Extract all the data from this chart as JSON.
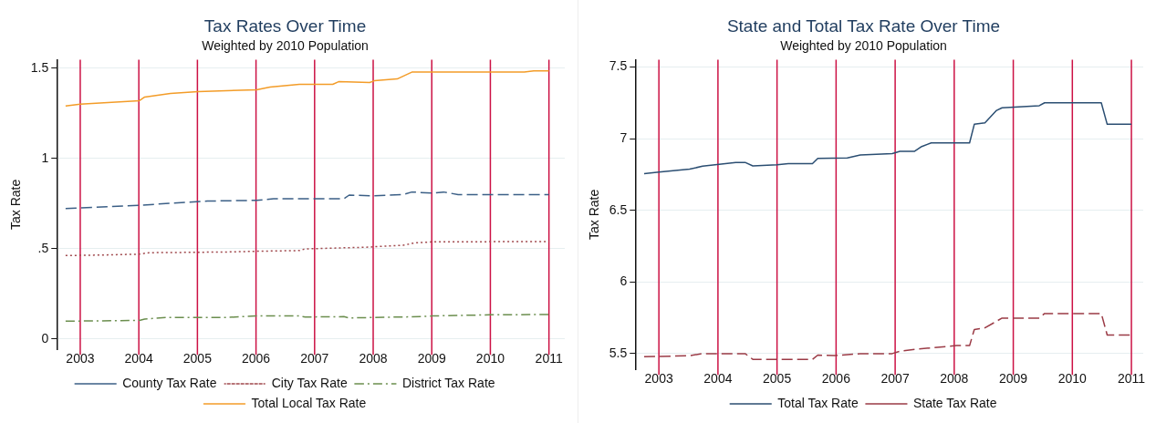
{
  "chart_data": [
    {
      "type": "line",
      "title": "Tax Rates Over Time",
      "subtitle": "Weighted by 2010 Population",
      "ylabel": "Tax Rate",
      "xlim": [
        2002.6,
        2011.27
      ],
      "xticks": [
        2003,
        2004,
        2005,
        2006,
        2007,
        2008,
        2009,
        2010,
        2011
      ],
      "ylim": [
        -0.057,
        1.546
      ],
      "yticks": [
        0,
        {
          "value": 0.5,
          "label": ".5"
        },
        1,
        1.5
      ],
      "grid": "y",
      "legend": "bottom",
      "marker": "none",
      "ref_lines": [
        {
          "axis": "x",
          "value": 2003,
          "color": "#cc1144"
        },
        {
          "axis": "x",
          "value": 2004,
          "color": "#cc1144"
        },
        {
          "axis": "x",
          "value": 2005,
          "color": "#cc1144"
        },
        {
          "axis": "x",
          "value": 2006,
          "color": "#cc1144"
        },
        {
          "axis": "x",
          "value": 2007,
          "color": "#cc1144"
        },
        {
          "axis": "x",
          "value": 2008,
          "color": "#cc1144"
        },
        {
          "axis": "x",
          "value": 2009,
          "color": "#cc1144"
        },
        {
          "axis": "x",
          "value": 2010,
          "color": "#cc1144"
        },
        {
          "axis": "x",
          "value": 2011,
          "color": "#cc1144"
        }
      ],
      "series": [
        {
          "name": "County Tax Rate",
          "color": "#3b5f86",
          "line_style": "dashed",
          "x": [
            2002.75,
            2004.01,
            2004.54,
            2005.17,
            2006.01,
            2006.3,
            2007.5,
            2007.59,
            2008.02,
            2008.51,
            2008.66,
            2009.01,
            2009.2,
            2009.45,
            2011
          ],
          "values": [
            0.723,
            0.74,
            0.752,
            0.764,
            0.768,
            0.777,
            0.777,
            0.797,
            0.793,
            0.8,
            0.814,
            0.808,
            0.814,
            0.8,
            0.8
          ]
        },
        {
          "name": "City Tax Rate",
          "color": "#a0484c",
          "line_style": "dotted",
          "x": [
            2002.75,
            2003.5,
            2004.01,
            2004.17,
            2005.52,
            2006.01,
            2006.74,
            2006.84,
            2007.5,
            2007.94,
            2008.02,
            2008.51,
            2008.7,
            2009.01,
            2011
          ],
          "values": [
            0.462,
            0.466,
            0.47,
            0.478,
            0.482,
            0.486,
            0.49,
            0.499,
            0.505,
            0.509,
            0.511,
            0.519,
            0.532,
            0.538,
            0.54
          ]
        },
        {
          "name": "District Tax Rate",
          "color": "#6b8e4e",
          "line_style": "dashdot",
          "x": [
            2002.75,
            2004.01,
            2004.1,
            2004.5,
            2005.52,
            2006.01,
            2006.74,
            2006.84,
            2007.5,
            2007.59,
            2008.82,
            2009.01,
            2010,
            2011
          ],
          "values": [
            0.099,
            0.103,
            0.111,
            0.12,
            0.12,
            0.128,
            0.128,
            0.122,
            0.124,
            0.117,
            0.124,
            0.128,
            0.134,
            0.136
          ]
        },
        {
          "name": "Total Local Tax Rate",
          "color": "#f39c28",
          "line_style": "solid",
          "x": [
            2002.75,
            2003.0,
            2004.01,
            2004.1,
            2004.54,
            2005.01,
            2006.01,
            2006.24,
            2006.74,
            2007.31,
            2007.41,
            2007.94,
            2008.02,
            2008.41,
            2008.66,
            2010.58,
            2010.74,
            2011
          ],
          "values": [
            1.29,
            1.3,
            1.32,
            1.34,
            1.36,
            1.37,
            1.38,
            1.395,
            1.41,
            1.41,
            1.425,
            1.42,
            1.43,
            1.44,
            1.478,
            1.478,
            1.485,
            1.485
          ]
        }
      ]
    },
    {
      "type": "line",
      "title": "State and Total Tax Rate Over Time",
      "subtitle": "Weighted by 2010 Population",
      "ylabel": "Tax Rate",
      "xlim": [
        2002.6,
        2011.2
      ],
      "xticks": [
        2003,
        2004,
        2005,
        2006,
        2007,
        2008,
        2009,
        2010,
        2011
      ],
      "ylim": [
        5.39,
        7.55
      ],
      "yticks": [
        5.5,
        6,
        6.5,
        7,
        7.5
      ],
      "grid": "y",
      "legend": "bottom",
      "marker": "none",
      "ref_lines": [
        {
          "axis": "x",
          "value": 2003,
          "color": "#cc1144"
        },
        {
          "axis": "x",
          "value": 2004,
          "color": "#cc1144"
        },
        {
          "axis": "x",
          "value": 2005,
          "color": "#cc1144"
        },
        {
          "axis": "x",
          "value": 2006,
          "color": "#cc1144"
        },
        {
          "axis": "x",
          "value": 2007,
          "color": "#cc1144"
        },
        {
          "axis": "x",
          "value": 2008,
          "color": "#cc1144"
        },
        {
          "axis": "x",
          "value": 2009,
          "color": "#cc1144"
        },
        {
          "axis": "x",
          "value": 2010,
          "color": "#cc1144"
        },
        {
          "axis": "x",
          "value": 2011,
          "color": "#cc1144"
        }
      ],
      "series": [
        {
          "name": "Total Tax Rate",
          "color": "#2b4e72",
          "line_style": "solid",
          "x": [
            2002.75,
            2003.0,
            2003.52,
            2003.74,
            2004.3,
            2004.46,
            2004.59,
            2005.0,
            2005.19,
            2005.6,
            2005.69,
            2006.19,
            2006.41,
            2006.95,
            2007.08,
            2007.33,
            2007.45,
            2007.61,
            2008.26,
            2008.34,
            2008.52,
            2008.71,
            2008.81,
            2009.44,
            2009.53,
            2010.49,
            2010.59,
            2011
          ],
          "values": [
            6.756,
            6.766,
            6.787,
            6.808,
            6.834,
            6.834,
            6.81,
            6.818,
            6.826,
            6.826,
            6.862,
            6.865,
            6.886,
            6.896,
            6.912,
            6.912,
            6.945,
            6.97,
            6.97,
            7.1,
            7.11,
            7.195,
            7.215,
            7.23,
            7.25,
            7.25,
            7.1,
            7.1
          ]
        },
        {
          "name": "State Tax Rate",
          "color": "#9b3b46",
          "line_style": "dashed",
          "x": [
            2002.75,
            2003.52,
            2003.74,
            2004.46,
            2004.59,
            2005.6,
            2005.69,
            2005.97,
            2006.41,
            2006.95,
            2007.08,
            2007.33,
            2007.61,
            2008.04,
            2008.26,
            2008.34,
            2008.52,
            2008.81,
            2009.44,
            2009.53,
            2010.49,
            2010.59,
            2011
          ],
          "values": [
            5.478,
            5.486,
            5.5,
            5.5,
            5.46,
            5.46,
            5.49,
            5.486,
            5.5,
            5.5,
            5.517,
            5.53,
            5.54,
            5.556,
            5.556,
            5.668,
            5.68,
            5.748,
            5.748,
            5.78,
            5.78,
            5.63,
            5.63
          ]
        }
      ]
    }
  ]
}
